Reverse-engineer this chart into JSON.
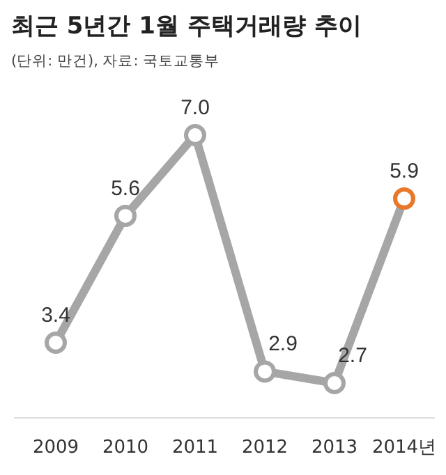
{
  "chart_data": {
    "type": "line",
    "title": "최근 5년간 1월 주택거래량 추이",
    "subtitle": "(단위: 만건), 자료: 국토교통부",
    "categories": [
      "2009",
      "2010",
      "2011",
      "2012",
      "2013",
      "2014년"
    ],
    "series": [
      {
        "color": "#a6a6a6",
        "colors": [
          "#a6a6a6",
          "#a6a6a6",
          "#a6a6a6",
          "#a6a6a6",
          "#a6a6a6",
          "#e8782a"
        ],
        "values": [
          3.4,
          5.6,
          7.0,
          2.9,
          2.7,
          5.9
        ],
        "value_labels": [
          "3.4",
          "5.6",
          "7.0",
          "2.9",
          "2.7",
          "5.9"
        ]
      }
    ],
    "marker": "circle"
  }
}
